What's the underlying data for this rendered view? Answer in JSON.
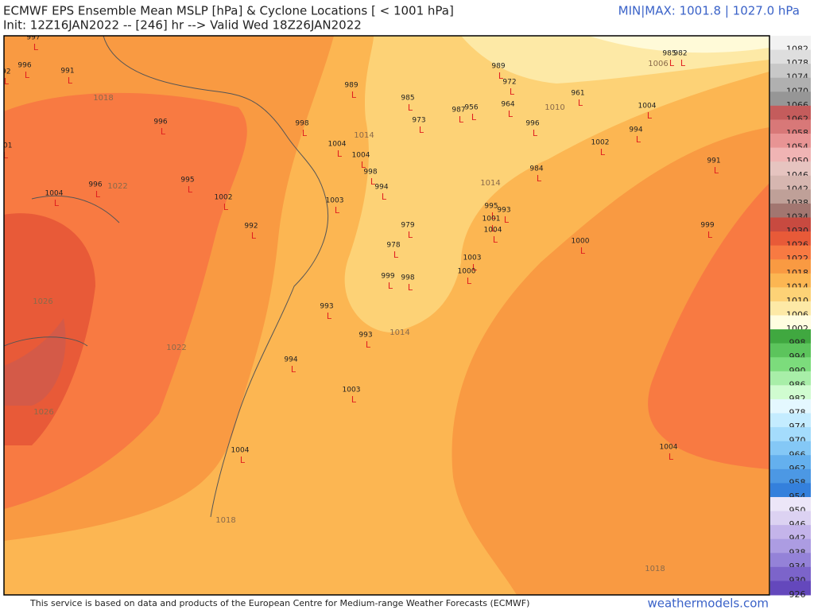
{
  "header": {
    "title": "ECMWF EPS Ensemble Mean MSLP [hPa] & Cyclone Locations [ < 1001 hPa]",
    "subtitle": "Init: 12Z16JAN2022 -- [246] hr --> Valid Wed 18Z26JAN2022",
    "minmax": "MIN|MAX: 1001.8 | 1027.0 hPa"
  },
  "colorbar": {
    "levels": [
      1082,
      1078,
      1074,
      1070,
      1066,
      1062,
      1058,
      1054,
      1050,
      1046,
      1042,
      1038,
      1034,
      1030,
      1026,
      1022,
      1018,
      1014,
      1010,
      1006,
      1002,
      998,
      994,
      990,
      986,
      982,
      978,
      974,
      970,
      966,
      962,
      958,
      954,
      950,
      946,
      942,
      938,
      934,
      930,
      926
    ],
    "colors": [
      "#f2f2f2",
      "#dedede",
      "#c8c8c8",
      "#b0b0b0",
      "#969696",
      "#c45c5c",
      "#d87878",
      "#e89494",
      "#f0b4b4",
      "#e6c4c0",
      "#d6b6b0",
      "#bfa098",
      "#a27670",
      "#c84a40",
      "#e85a38",
      "#f87a42",
      "#f99a42",
      "#fcb652",
      "#fdd276",
      "#fde9a6",
      "#fffde0",
      "#40a840",
      "#5cc45c",
      "#7cdc7c",
      "#a8eea8",
      "#d0fcd0",
      "#e4f8ff",
      "#c4ecff",
      "#a4dcfc",
      "#84c8f6",
      "#64b0ee",
      "#4c98e4",
      "#3480dc",
      "#ece6f8",
      "#dcd2f2",
      "#c4b4ea",
      "#ac9ce2",
      "#9482d8",
      "#7c64ca",
      "#6448bc"
    ]
  },
  "map": {
    "cyclone_marker": "L",
    "cyclones": [
      997,
      996,
      992,
      991,
      996,
      998,
      989,
      985,
      973,
      987,
      956,
      989,
      972,
      964,
      961,
      1004,
      996,
      1004,
      1004,
      1001,
      1002,
      994,
      984,
      991,
      998,
      995,
      996,
      1004,
      1002,
      994,
      1003,
      992,
      995,
      993,
      1001,
      1004,
      979,
      999,
      1000,
      978,
      1003,
      1000,
      999,
      998,
      993,
      993,
      994,
      1003,
      1004,
      1004,
      985,
      982
    ],
    "contour_labels": [
      1018,
      1022,
      1026,
      1022,
      1026,
      1014,
      1014,
      1014,
      1010,
      1006,
      1018,
      1018
    ]
  },
  "footer": {
    "credit": "This service is based on data and products of the European Centre for Medium-range Weather Forecasts (ECMWF)",
    "brand": "weathermodels.com"
  }
}
